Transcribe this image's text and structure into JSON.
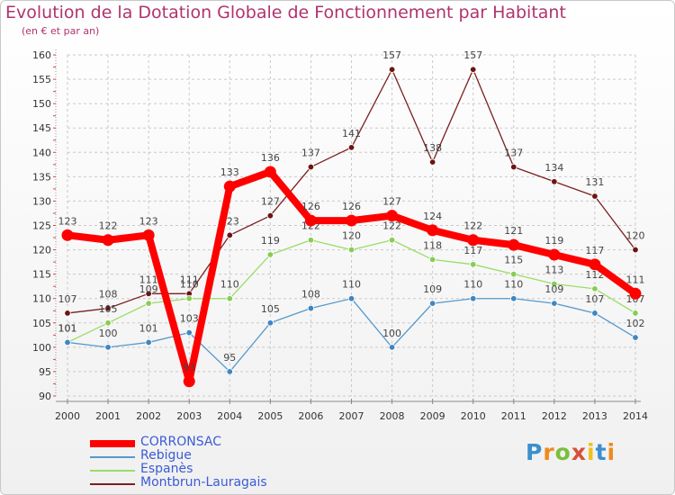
{
  "chart_data": {
    "type": "line",
    "title": "Evolution de la Dotation Globale de Fonctionnement par Habitant",
    "subtitle": "(en € et par an)",
    "xlabel": "",
    "ylabel": "",
    "ylim": [
      90,
      160
    ],
    "yticks": [
      90,
      95,
      100,
      105,
      110,
      115,
      120,
      125,
      130,
      135,
      140,
      145,
      150,
      155,
      160
    ],
    "categories": [
      "2000",
      "2001",
      "2002",
      "2003",
      "2004",
      "2005",
      "2006",
      "2007",
      "2008",
      "2009",
      "2010",
      "2011",
      "2012",
      "2013",
      "2014"
    ],
    "grid": true,
    "legend_position": "bottom-left",
    "series": [
      {
        "name": "Montbrun-Lauragais",
        "color": "#7a1f1f",
        "dot_color": "#6b1414",
        "label_color": "#444444",
        "values": [
          107,
          108,
          111,
          111,
          123,
          127,
          137,
          141,
          157,
          138,
          157,
          137,
          134,
          131,
          120
        ]
      },
      {
        "name": "Espanès",
        "color": "#99dd66",
        "dot_color": "#88cc55",
        "label_color": "#444444",
        "values": [
          101,
          105,
          109,
          110,
          110,
          119,
          122,
          120,
          122,
          118,
          117,
          115,
          113,
          112,
          107
        ]
      },
      {
        "name": "Rebigue",
        "color": "#5599cc",
        "dot_color": "#3f86c4",
        "label_color": "#444444",
        "values": [
          101,
          100,
          101,
          103,
          95,
          105,
          108,
          110,
          100,
          109,
          110,
          110,
          109,
          107,
          102
        ]
      },
      {
        "name": "CORRONSAC",
        "color": "#ff0000",
        "dot_color": "#ff0000",
        "label_color": "#444444",
        "values": [
          123,
          122,
          123,
          93,
          133,
          136,
          126,
          126,
          127,
          124,
          122,
          121,
          119,
          117,
          111
        ]
      }
    ]
  },
  "legend": {
    "items": [
      {
        "label": "CORRONSAC",
        "color": "#ff0000"
      },
      {
        "label": "Rebigue",
        "color": "#5599cc"
      },
      {
        "label": "Espanès",
        "color": "#99dd66"
      },
      {
        "label": "Montbrun-Lauragais",
        "color": "#7a1f1f"
      }
    ]
  },
  "logo": {
    "text": "Proxiti"
  }
}
